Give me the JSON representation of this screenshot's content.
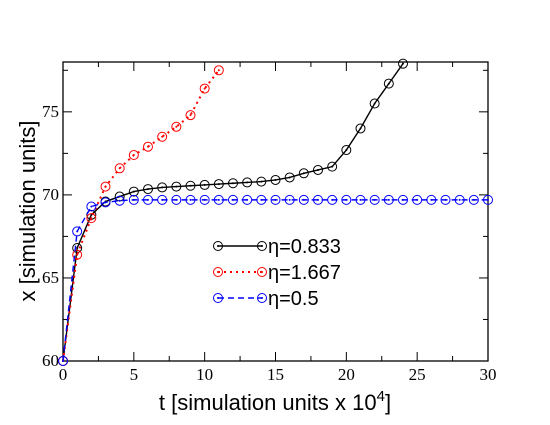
{
  "chart_data": {
    "type": "line",
    "title": "",
    "xlabel": "t [simulation units x 10",
    "xlabel_sup": "4",
    "xlabel_end": "]",
    "ylabel": "x [simulation units]",
    "xlim": [
      0,
      30
    ],
    "ylim": [
      60,
      78
    ],
    "xticks": [
      "0",
      "5",
      "10",
      "15",
      "20",
      "25",
      "30"
    ],
    "yticks": [
      "60",
      "65",
      "70",
      "75"
    ],
    "grid": false,
    "legend_position": "center",
    "series": [
      {
        "name": "η=0.833",
        "color": "#000000",
        "dash": "solid",
        "x": [
          0,
          1,
          2,
          3,
          4,
          5,
          6,
          7,
          8,
          9,
          10,
          11,
          12,
          13,
          14,
          15,
          16,
          17,
          18,
          19,
          20,
          21,
          22,
          23,
          24
        ],
        "y": [
          60,
          66.8,
          68.8,
          69.6,
          69.9,
          70.2,
          70.35,
          70.45,
          70.5,
          70.55,
          70.6,
          70.65,
          70.7,
          70.75,
          70.8,
          70.9,
          71.05,
          71.3,
          71.5,
          71.7,
          72.7,
          74.0,
          75.5,
          76.7,
          77.9
        ]
      },
      {
        "name": "η=1.667",
        "color": "#ff0000",
        "dash": "dotted",
        "x": [
          0,
          1,
          2,
          3,
          4,
          5,
          6,
          7,
          8,
          9,
          10,
          11
        ],
        "y": [
          60,
          66.4,
          68.6,
          70.5,
          71.6,
          72.4,
          72.9,
          73.5,
          74.1,
          74.8,
          76.4,
          77.5
        ]
      },
      {
        "name": "η=0.5",
        "color": "#0000ff",
        "dash": "dashed",
        "x": [
          0,
          1,
          2,
          3,
          4,
          5,
          6,
          7,
          8,
          9,
          10,
          11,
          12,
          13,
          14,
          15,
          16,
          17,
          18,
          19,
          20,
          21,
          22,
          23,
          24,
          25,
          26,
          27,
          28,
          29,
          30
        ],
        "y": [
          60,
          67.8,
          69.3,
          69.55,
          69.65,
          69.7,
          69.7,
          69.7,
          69.7,
          69.7,
          69.7,
          69.7,
          69.7,
          69.7,
          69.7,
          69.7,
          69.7,
          69.7,
          69.7,
          69.7,
          69.7,
          69.7,
          69.7,
          69.7,
          69.7,
          69.7,
          69.7,
          69.7,
          69.7,
          69.7,
          69.7
        ]
      }
    ]
  }
}
